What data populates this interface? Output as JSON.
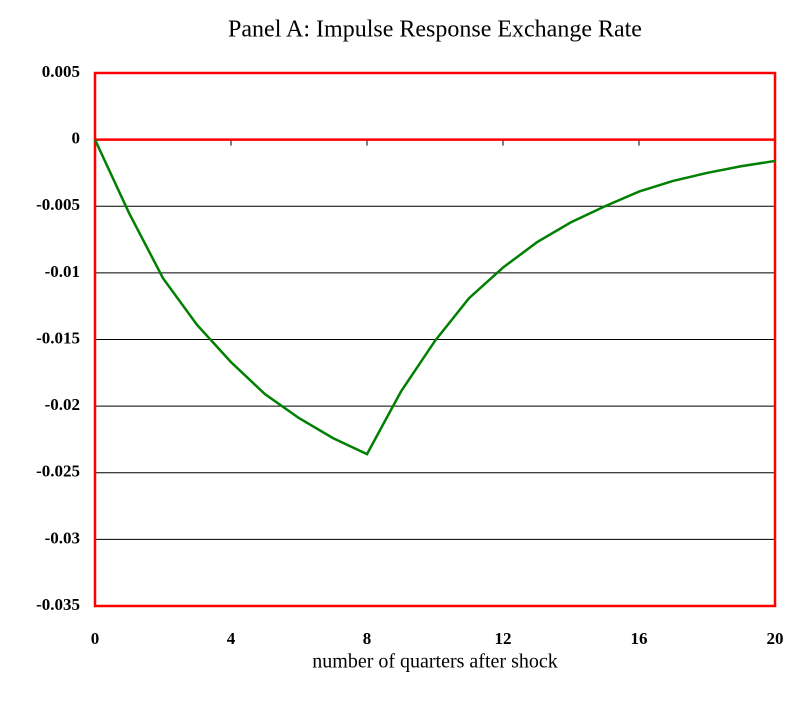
{
  "chart_data": {
    "type": "line",
    "title": "Panel A: Impulse Response Exchange Rate",
    "x_label": "number of  quarters after shock",
    "x": [
      0,
      1,
      2,
      3,
      4,
      5,
      6,
      7,
      8,
      9,
      10,
      11,
      12,
      13,
      14,
      15,
      16,
      17,
      18,
      19,
      20
    ],
    "series": [
      {
        "color": "#008000",
        "values": [
          0,
          -0.0055,
          -0.0104,
          -0.0139,
          -0.0167,
          -0.0191,
          -0.0209,
          -0.0224,
          -0.0236,
          -0.0189,
          -0.0151,
          -0.0119,
          -0.0096,
          -0.0077,
          -0.0062,
          -0.005,
          -0.0039,
          -0.0031,
          -0.0025,
          -0.002,
          -0.0016
        ]
      }
    ],
    "xlim": [
      0,
      20
    ],
    "xticks": [
      0,
      4,
      8,
      12,
      16,
      20
    ],
    "ylim": [
      -0.035,
      0.005
    ],
    "yticks": [
      0.005,
      0,
      -0.005,
      -0.01,
      -0.015,
      -0.02,
      -0.025,
      -0.03,
      -0.035
    ],
    "grid": true
  }
}
